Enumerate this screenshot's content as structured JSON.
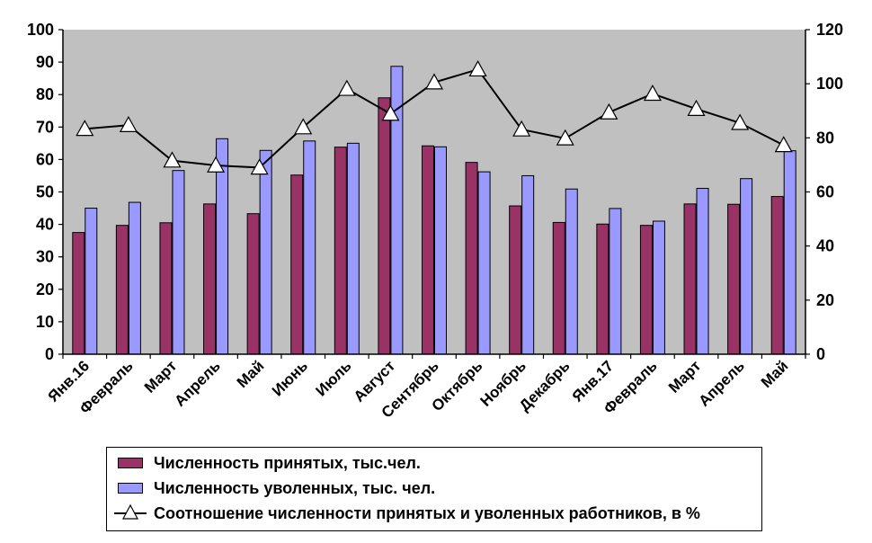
{
  "chart_data": {
    "type": "bar",
    "categories": [
      "Янв.16",
      "Февраль",
      "Март",
      "Апрель",
      "Май",
      "Июнь",
      "Июль",
      "Август",
      "Сентябрь",
      "Октябрь",
      "Ноябрь",
      "Декабрь",
      "Янв.17",
      "Февраль",
      "Март",
      "Апрель",
      "Май"
    ],
    "series": [
      {
        "name": "Численность принятых, тыс.чел.",
        "kind": "bar",
        "axis": "left",
        "color": "#993366",
        "values": [
          37.5,
          39.7,
          40.5,
          46.3,
          43.3,
          55.2,
          63.8,
          79,
          64.2,
          59.1,
          45.7,
          40.6,
          40.1,
          39.7,
          46.3,
          46.2,
          48.6
        ]
      },
      {
        "name": "Численность уволенных, тыс. чел.",
        "kind": "bar",
        "axis": "left",
        "color": "#9999ff",
        "values": [
          45,
          46.8,
          56.6,
          66.4,
          62.8,
          65.7,
          65,
          88.7,
          63.9,
          56.2,
          55,
          50.9,
          44.9,
          41,
          51.1,
          54.1,
          62.7
        ]
      },
      {
        "name": "Соотношение численности принятых и уволенных работников, в %",
        "kind": "line",
        "axis": "right",
        "color": "#000000",
        "values": [
          83.3,
          84.7,
          71.6,
          69.8,
          69,
          83.9,
          98.1,
          88.9,
          100.5,
          105.3,
          83.1,
          79.8,
          89.4,
          96.3,
          90.7,
          85.5,
          77.3
        ]
      }
    ],
    "ylim": [
      0,
      100
    ],
    "yticks": [
      "0",
      "10",
      "20",
      "30",
      "40",
      "50",
      "60",
      "70",
      "80",
      "90",
      "100"
    ],
    "y2lim": [
      0,
      120
    ],
    "y2ticks": [
      "0",
      "20",
      "40",
      "60",
      "80",
      "100",
      "120"
    ],
    "plot_background": "#c0c0c0",
    "grid": false,
    "legend_position": "bottom"
  },
  "legend": {
    "hired": "Численность принятых, тыс.чел.",
    "fired": "Численность уволенных, тыс. чел.",
    "ratio": "Соотношение численности принятых и уволенных работников, в %"
  }
}
